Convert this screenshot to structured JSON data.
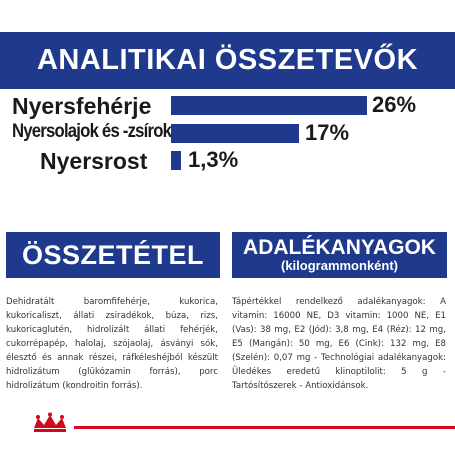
{
  "header": {
    "title": "ANALITIKAI ÖSSZETEVŐK"
  },
  "nutrients": [
    {
      "label": "Nyersfehérje",
      "value": "26%",
      "level": 26
    },
    {
      "label": "Nyersolajok és -zsírok",
      "value": "17%",
      "level": 17
    },
    {
      "label": "Nyersrost",
      "value": "1,3%",
      "level": 1.3
    }
  ],
  "composition": {
    "title": "ÖSSZETÉTEL",
    "text": "Dehidratált baromfifehérje, kukorica, kukoricaliszt, állati zsiradékok, búza, rizs, kukoricaglutén, hidrolizált állati fehérjék, cukorrépapép, halolaj, szójaolaj, ásványi sók, élesztő és annak részei, ráfkéleshéjból készült hidrolizátum (glükózamin forrás), porc hidrolizátum (kondroitin forrás)."
  },
  "additives": {
    "title": "ADALÉKANYAGOK",
    "subtitle": "(kilogrammonként)",
    "text": "Tápértékkel rendelkező adalékanyagok: A vitamin: 16000 NE, D3 vitamin: 1000 NE, E1 (Vas): 38 mg, E2 (Jód): 3,8 mg, E4 (Réz): 12 mg, E5 (Mangán): 50 mg, E6 (Cink): 132 mg, E8 (Szelén): 0,07 mg - Technológiai adalékanyagok: Üledékes eredetű klinoptilolit: 5 g - Tartósítószerek - Antioxidánsok."
  },
  "colors": {
    "brand_blue": "#1f3a8c",
    "accent_red": "#d5071c"
  },
  "icons": {
    "logo": "royal-canin-crown-logo"
  }
}
